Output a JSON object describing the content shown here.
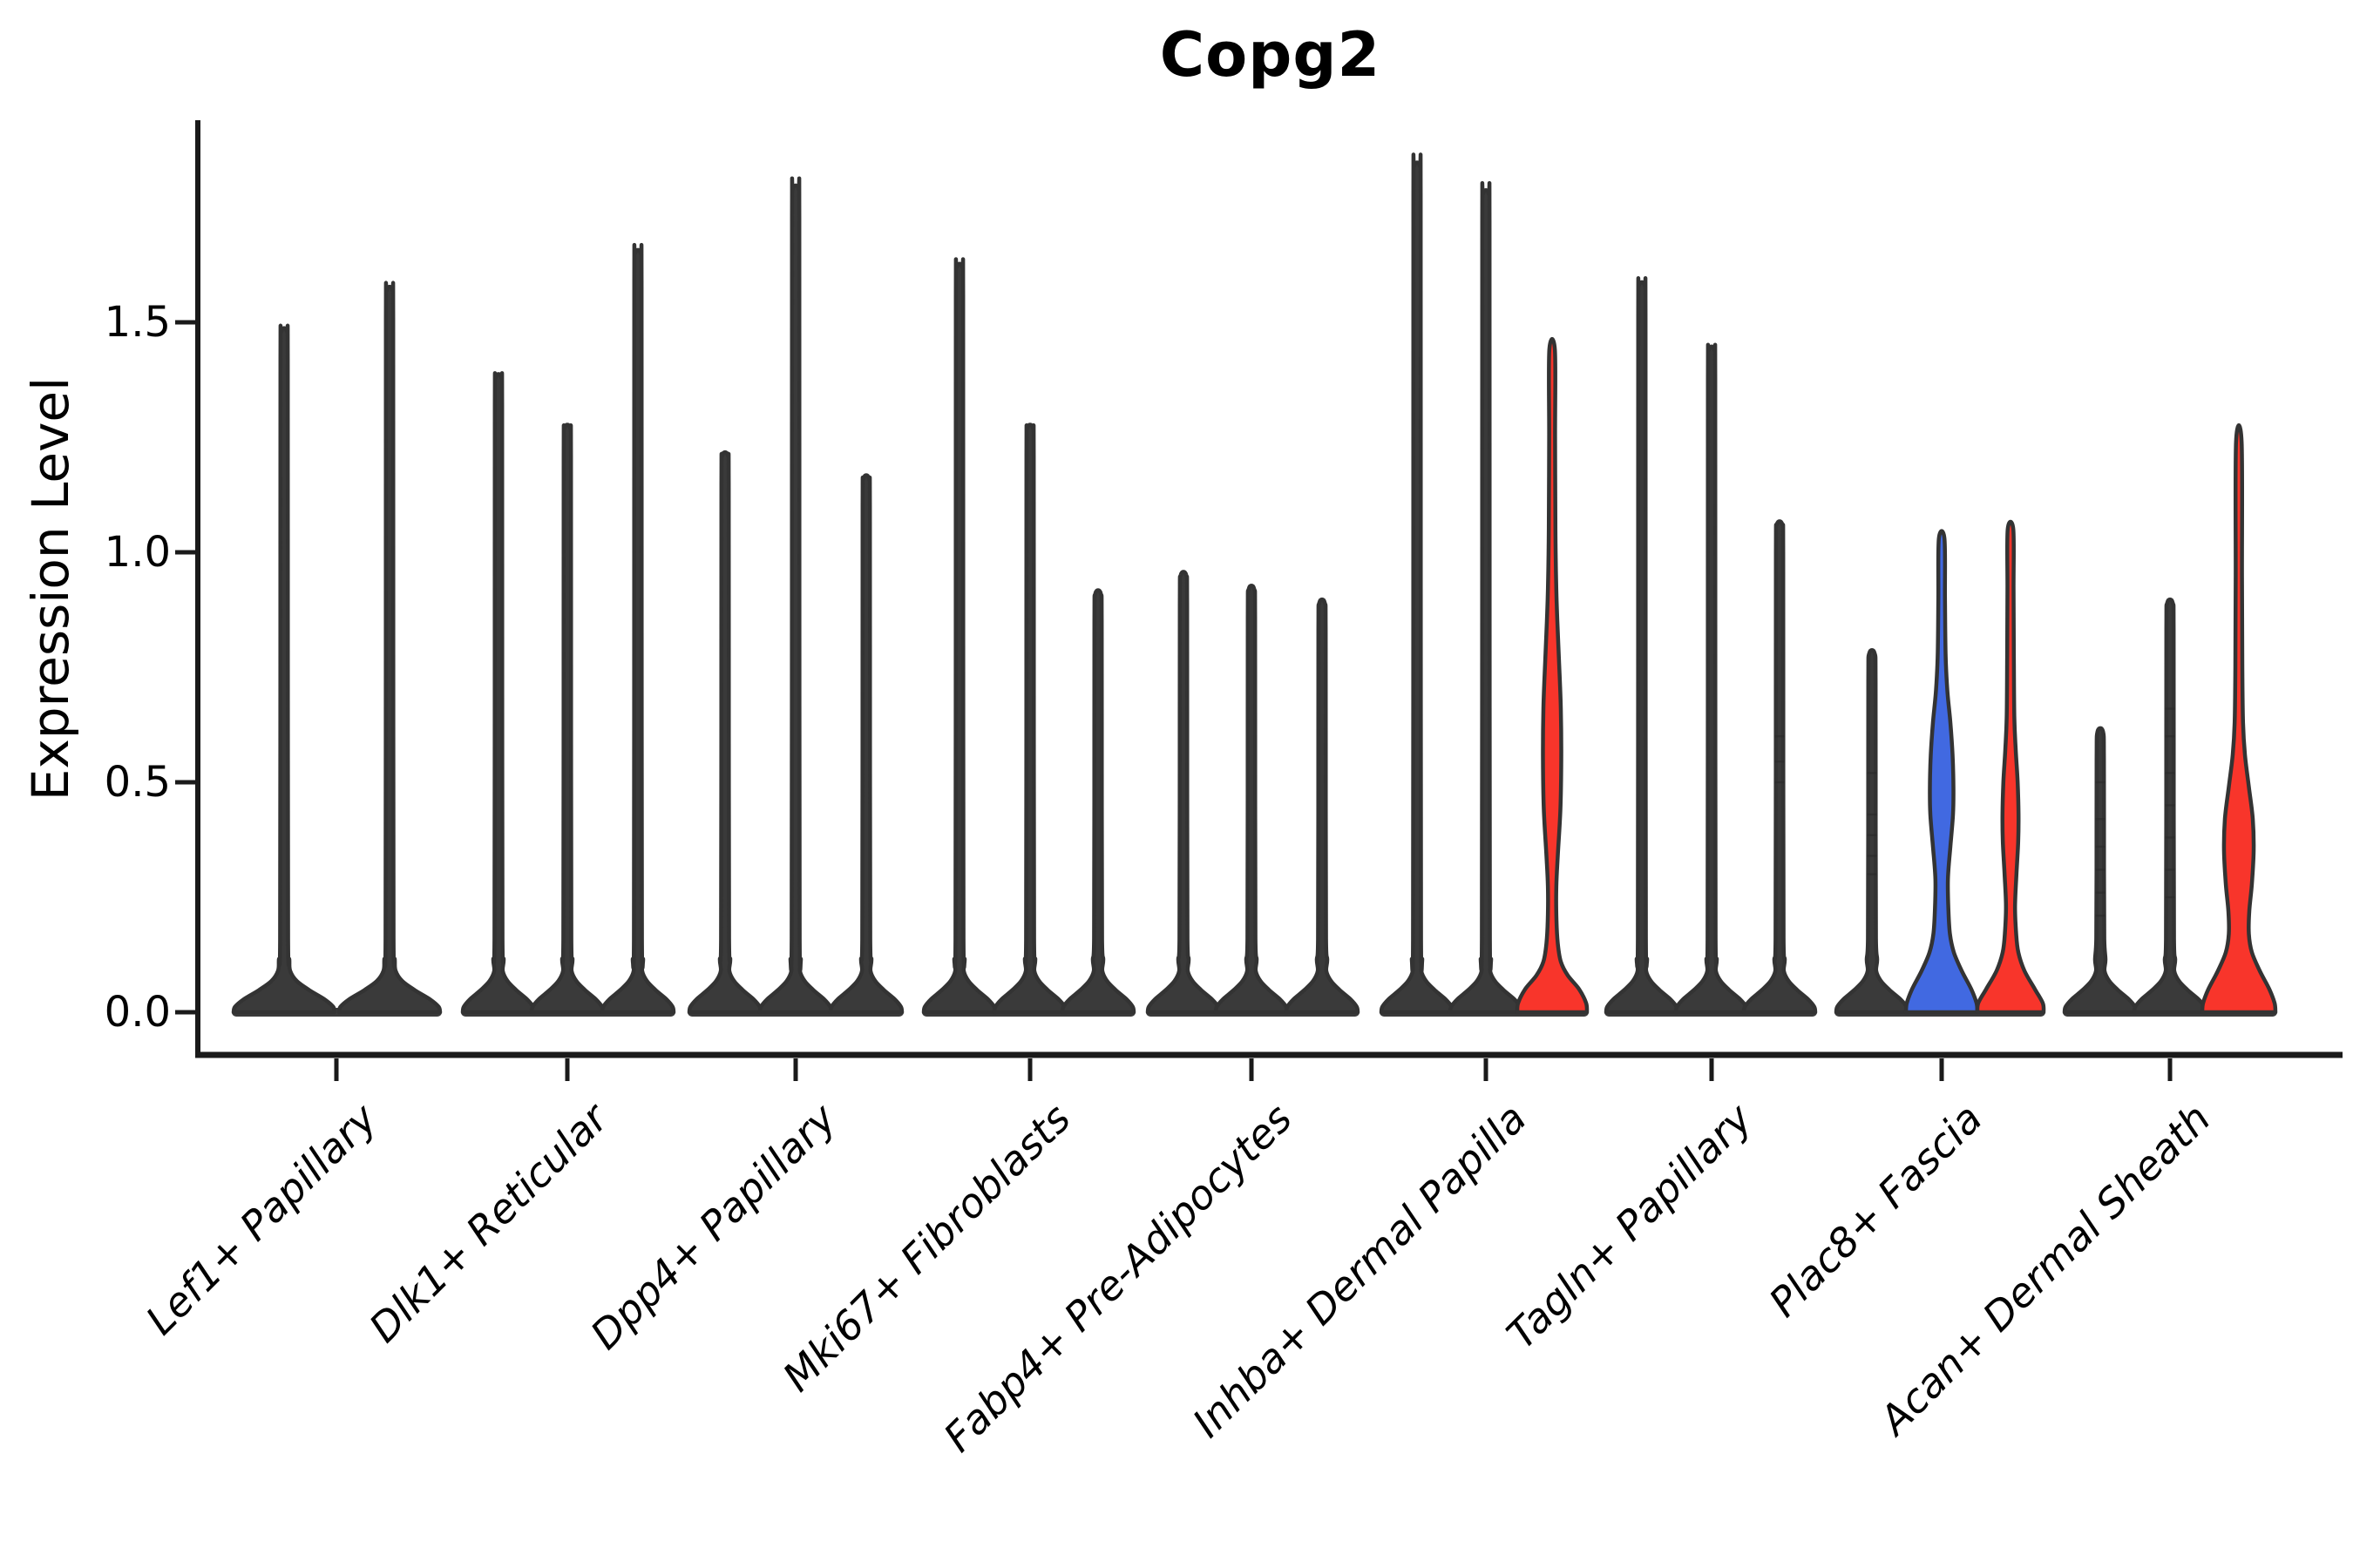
{
  "chart_data": {
    "type": "violin",
    "title": "Copg2",
    "ylabel": "Expression Level",
    "xlabel": "",
    "yticks": [
      "0.0",
      "0.5",
      "1.0",
      "1.5"
    ],
    "ytick_values": [
      0,
      0.5,
      1.0,
      1.5
    ],
    "ylim": [
      -0.07,
      1.93
    ],
    "grid": "off",
    "legend": "none",
    "colors": {
      "default_violin": "#3a3a3a",
      "outline": "#333333",
      "axis": "#1a1a1a",
      "highlight_red": "#F8352B",
      "highlight_blue": "#4169E1"
    },
    "groups": [
      {
        "label": "Lef1+ Papillary",
        "tick_x": 386,
        "violins": [
          {
            "x": 326,
            "max": 1.48,
            "color": "default",
            "base_hw": 58
          },
          {
            "x": 447,
            "max": 1.57,
            "color": "default",
            "base_hw": 58
          }
        ]
      },
      {
        "label": "Dlk1+ Reticular",
        "tick_x": 651,
        "violins": [
          {
            "x": 572,
            "max": 1.38,
            "color": "default",
            "base_hw": 41
          },
          {
            "x": 651,
            "max": 1.27,
            "color": "default",
            "base_hw": 41
          },
          {
            "x": 732,
            "max": 1.65,
            "color": "default",
            "base_hw": 41
          }
        ]
      },
      {
        "label": "Dpp4+ Papillary",
        "tick_x": 913,
        "violins": [
          {
            "x": 832,
            "max": 1.21,
            "color": "default",
            "base_hw": 41
          },
          {
            "x": 913,
            "max": 1.79,
            "color": "default",
            "base_hw": 41
          },
          {
            "x": 994,
            "max": 1.16,
            "color": "default",
            "base_hw": 41
          }
        ]
      },
      {
        "label": "Mki67+ Fibroblasts",
        "tick_x": 1182,
        "violins": [
          {
            "x": 1101,
            "max": 1.62,
            "color": "default",
            "base_hw": 41
          },
          {
            "x": 1182,
            "max": 1.27,
            "color": "default",
            "base_hw": 41
          },
          {
            "x": 1260,
            "max": 0.91,
            "color": "default",
            "base_hw": 41
          }
        ]
      },
      {
        "label": "Fabp4+ Pre-Adipocytes",
        "tick_x": 1436,
        "violins": [
          {
            "x": 1358,
            "max": 0.95,
            "color": "default",
            "base_hw": 41
          },
          {
            "x": 1436,
            "max": 0.92,
            "color": "default",
            "base_hw": 41
          },
          {
            "x": 1517,
            "max": 0.89,
            "color": "default",
            "base_hw": 41
          }
        ]
      },
      {
        "label": "Inhba+ Dermal Papilla",
        "tick_x": 1705,
        "violins": [
          {
            "x": 1626,
            "max": 1.84,
            "color": "default",
            "base_hw": 41
          },
          {
            "x": 1705,
            "max": 1.78,
            "color": "default",
            "base_hw": 41
          },
          {
            "x": 1781,
            "max": 1.44,
            "color": "red",
            "base_hw": 40,
            "profile": [
              [
                0,
                40
              ],
              [
                0.02,
                39
              ],
              [
                0.05,
                31
              ],
              [
                0.08,
                18
              ],
              [
                0.11,
                10
              ],
              [
                0.15,
                6.5
              ],
              [
                0.2,
                5
              ],
              [
                0.27,
                4.8
              ],
              [
                0.34,
                6.5
              ],
              [
                0.44,
                9.5
              ],
              [
                0.55,
                10.5
              ],
              [
                0.66,
                10
              ],
              [
                0.76,
                8
              ],
              [
                0.85,
                6
              ],
              [
                0.92,
                4.8
              ],
              [
                1.05,
                3.8
              ],
              [
                1.25,
                3.4
              ],
              [
                1.44,
                3.2
              ]
            ]
          }
        ]
      },
      {
        "label": "Tagln+ Papillary",
        "tick_x": 1964,
        "violins": [
          {
            "x": 1884,
            "max": 1.58,
            "color": "default",
            "base_hw": 41
          },
          {
            "x": 1964,
            "max": 1.44,
            "color": "default",
            "base_hw": 41
          },
          {
            "x": 2042,
            "max": 1.06,
            "color": "default",
            "base_hw": 41,
            "marks": [
              0.5,
              0.545,
              0.6
            ]
          }
        ]
      },
      {
        "label": "Plac8+ Fascia",
        "tick_x": 2228,
        "violins": [
          {
            "x": 2148,
            "max": 0.78,
            "color": "default",
            "base_hw": 41,
            "marks": [
              0.3,
              0.34,
              0.385,
              0.43,
              0.52
            ]
          },
          {
            "x": 2228,
            "max": 1.03,
            "color": "blue",
            "base_hw": 41,
            "profile": [
              [
                0,
                41
              ],
              [
                0.02,
                40
              ],
              [
                0.05,
                34
              ],
              [
                0.09,
                23
              ],
              [
                0.13,
                14
              ],
              [
                0.17,
                9.5
              ],
              [
                0.22,
                7.8
              ],
              [
                0.29,
                7.2
              ],
              [
                0.36,
                10
              ],
              [
                0.43,
                13
              ],
              [
                0.49,
                13.5
              ],
              [
                0.56,
                12.5
              ],
              [
                0.63,
                10
              ],
              [
                0.7,
                6.5
              ],
              [
                0.78,
                4.5
              ],
              [
                0.9,
                3.8
              ],
              [
                1.03,
                3.2
              ]
            ]
          },
          {
            "x": 2307,
            "max": 1.05,
            "color": "red",
            "base_hw": 38,
            "profile": [
              [
                0,
                38
              ],
              [
                0.02,
                37
              ],
              [
                0.05,
                28
              ],
              [
                0.09,
                16
              ],
              [
                0.13,
                9
              ],
              [
                0.17,
                6.5
              ],
              [
                0.23,
                5.2
              ],
              [
                0.3,
                6.8
              ],
              [
                0.37,
                8.8
              ],
              [
                0.43,
                9.2
              ],
              [
                0.5,
                8.2
              ],
              [
                0.57,
                6
              ],
              [
                0.64,
                4.4
              ],
              [
                0.78,
                3.8
              ],
              [
                0.92,
                3.5
              ],
              [
                1.05,
                3.2
              ]
            ]
          }
        ]
      },
      {
        "label": "Acan+ Dermal Sheath",
        "tick_x": 2490,
        "violins": [
          {
            "x": 2410,
            "max": 0.61,
            "color": "default",
            "base_hw": 41,
            "marks": [
              0.21,
              0.26,
              0.31,
              0.36,
              0.42,
              0.5
            ]
          },
          {
            "x": 2490,
            "max": 0.89,
            "color": "default",
            "base_hw": 41,
            "marks": [
              0.25,
              0.31,
              0.38,
              0.45,
              0.52,
              0.6,
              0.66
            ]
          },
          {
            "x": 2569,
            "max": 1.24,
            "color": "red",
            "base_hw": 42,
            "profile": [
              [
                0,
                42
              ],
              [
                0.02,
                41
              ],
              [
                0.05,
                35
              ],
              [
                0.09,
                24
              ],
              [
                0.13,
                15
              ],
              [
                0.17,
                11.5
              ],
              [
                0.22,
                12
              ],
              [
                0.28,
                15
              ],
              [
                0.35,
                17
              ],
              [
                0.42,
                16
              ],
              [
                0.49,
                11.5
              ],
              [
                0.56,
                7
              ],
              [
                0.63,
                4.8
              ],
              [
                0.75,
                4
              ],
              [
                0.95,
                3.6
              ],
              [
                1.24,
                3.2
              ]
            ]
          }
        ]
      }
    ]
  }
}
